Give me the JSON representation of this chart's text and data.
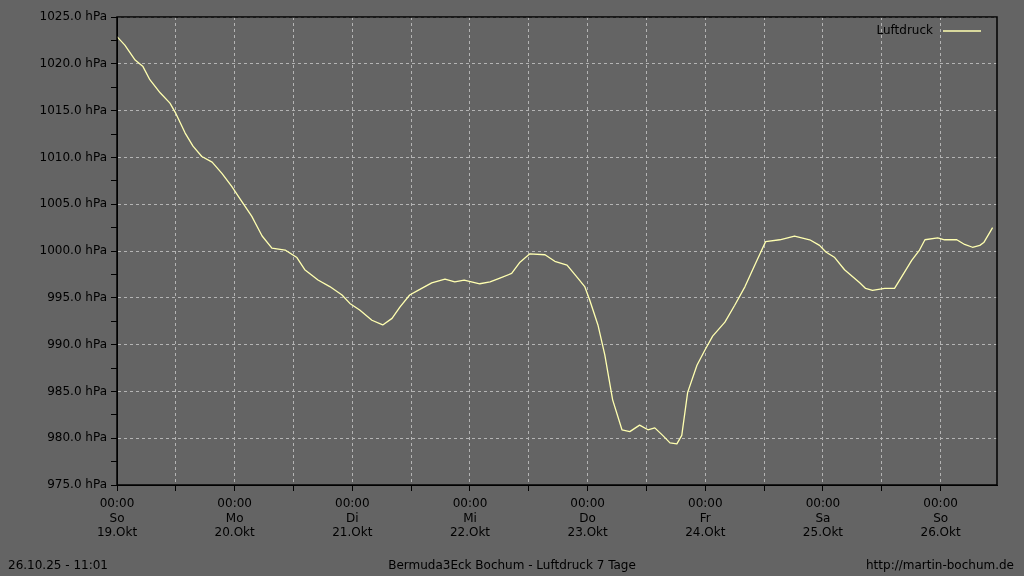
{
  "chart_data": {
    "type": "line",
    "title": "Bermuda3Eck Bochum - Luftdruck 7 Tage",
    "annotations": [
      "26.10.25 - 11:01",
      "http://martin-bochum.de"
    ],
    "x": [
      "--10-19T00:00",
      "--10-19T01:36",
      "--10-19T03:42",
      "--10-19T05:18",
      "--10-19T06:42",
      "--10-19T08:48",
      "--10-19T10:48",
      "--10-19T12:00",
      "--10-19T13:54",
      "--10-19T15:30",
      "--10-19T17:18",
      "--10-19T19:24",
      "--10-19T21:24",
      "--10-19T23:24",
      "--10-20T01:18",
      "--10-20T03:30",
      "--10-20T05:36",
      "--10-20T07:36",
      "--10-20T10:18",
      "--10-20T12:42",
      "--10-20T14:18",
      "--10-20T17:00",
      "--10-20T19:24",
      "--10-20T21:54",
      "--10-20T23:30",
      "--10-21T01:30",
      "--10-21T04:00",
      "--10-21T06:12",
      "--10-21T08:06",
      "--10-21T09:42",
      "--10-21T11:42",
      "--10-21T13:24",
      "--10-21T16:12",
      "--10-21T18:54",
      "--10-21T20:54",
      "--10-21T22:48",
      "--10-22T02:00",
      "--10-22T04:06",
      "--10-22T06:06",
      "--10-22T08:30",
      "--10-22T10:12",
      "--10-22T12:12",
      "--10-22T15:18",
      "--10-22T17:18",
      "--10-22T19:48",
      "--10-22T22:00",
      "--10-22T23:24",
      "--10-23T00:24",
      "--10-23T02:06",
      "--10-23T03:30",
      "--10-23T05:06",
      "--10-23T07:00",
      "--10-23T08:36",
      "--10-23T10:36",
      "--10-23T12:18",
      "--10-23T13:42",
      "--10-23T15:18",
      "--10-23T16:48",
      "--10-23T18:12",
      "--10-23T19:12",
      "--10-23T20:24",
      "--10-23T22:18",
      "--10-23T23:54",
      "--10-24T01:30",
      "--10-24T04:00",
      "--10-24T06:00",
      "--10-24T08:06",
      "--10-24T10:06",
      "--10-24T12:18",
      "--10-24T15:12",
      "--10-24T18:12",
      "--10-24T21:18",
      "--10-24T23:18",
      "--10-25T00:36",
      "--10-25T02:24",
      "--10-25T04:24",
      "--10-25T07:30",
      "--10-25T08:42",
      "--10-25T10:06",
      "--10-25T12:36",
      "--10-25T14:36",
      "--10-25T16:42",
      "--10-25T18:06",
      "--10-25T19:42",
      "--10-25T20:48",
      "--10-25T23:24",
      "--10-26T00:48",
      "--10-26T03:18",
      "--10-26T04:54",
      "--10-26T06:30",
      "--10-26T08:00",
      "--10-26T08:48",
      "--10-26T10:36"
    ],
    "series": [
      {
        "name": "Luftdruck",
        "color": "#ffffb0",
        "values": [
          1022.9,
          1022.0,
          1020.4,
          1019.7,
          1018.3,
          1016.9,
          1015.8,
          1014.7,
          1012.6,
          1011.2,
          1010.1,
          1009.5,
          1008.3,
          1006.9,
          1005.4,
          1003.7,
          1001.6,
          1000.3,
          1000.1,
          999.3,
          998.0,
          996.9,
          996.2,
          995.3,
          994.4,
          993.7,
          992.6,
          992.1,
          992.8,
          994.0,
          995.3,
          995.8,
          996.6,
          997.0,
          996.7,
          996.9,
          996.5,
          996.7,
          997.1,
          997.6,
          998.8,
          999.7,
          999.6,
          998.9,
          998.5,
          997.1,
          996.2,
          994.8,
          992.1,
          988.9,
          984.1,
          980.9,
          980.7,
          981.4,
          980.9,
          981.1,
          980.3,
          979.5,
          979.4,
          980.3,
          984.9,
          987.8,
          989.4,
          990.9,
          992.4,
          994.2,
          996.2,
          998.5,
          1001.0,
          1001.2,
          1001.6,
          1001.2,
          1000.6,
          999.9,
          999.3,
          998.0,
          996.6,
          996.0,
          995.8,
          996.0,
          996.0,
          997.8,
          999.0,
          1000.1,
          1001.2,
          1001.4,
          1001.2,
          1001.2,
          1000.7,
          1000.4,
          1000.6,
          1000.9,
          1002.5
        ]
      }
    ],
    "xlim": [
      "--10-19T00:00",
      "--10-26T11:30"
    ],
    "xticks": [
      {
        "value": "--10-19T00:00",
        "label": "00:00\nSo\n19.Okt"
      },
      {
        "value": "--10-19T12:00",
        "label": null
      },
      {
        "value": "--10-20T00:00",
        "label": "00:00\nMo\n20.Okt"
      },
      {
        "value": "--10-20T12:00",
        "label": null
      },
      {
        "value": "--10-21T00:00",
        "label": "00:00\nDi\n21.Okt"
      },
      {
        "value": "--10-21T12:00",
        "label": null
      },
      {
        "value": "--10-22T00:00",
        "label": "00:00\nMi\n22.Okt"
      },
      {
        "value": "--10-22T12:00",
        "label": null
      },
      {
        "value": "--10-23T00:00",
        "label": "00:00\nDo\n23.Okt"
      },
      {
        "value": "--10-23T12:00",
        "label": null
      },
      {
        "value": "--10-24T00:00",
        "label": "00:00\nFr\n24.Okt"
      },
      {
        "value": "--10-24T12:00",
        "label": null
      },
      {
        "value": "--10-25T00:00",
        "label": "00:00\nSa\n25.Okt"
      },
      {
        "value": "--10-25T12:00",
        "label": null
      },
      {
        "value": "--10-26T00:00",
        "label": "00:00\nSo\n26.Okt"
      }
    ],
    "ylim": [
      975,
      1025
    ],
    "yticks": [
      {
        "value": 975,
        "label": "975.0 hPa"
      },
      {
        "value": 977.5,
        "label": null
      },
      {
        "value": 980,
        "label": "980.0 hPa"
      },
      {
        "value": 982.5,
        "label": null
      },
      {
        "value": 985,
        "label": "985.0 hPa"
      },
      {
        "value": 987.5,
        "label": null
      },
      {
        "value": 990,
        "label": "990.0 hPa"
      },
      {
        "value": 992.5,
        "label": null
      },
      {
        "value": 995,
        "label": "995.0 hPa"
      },
      {
        "value": 997.5,
        "label": null
      },
      {
        "value": 1000,
        "label": "1000.0 hPa"
      },
      {
        "value": 1002.5,
        "label": null
      },
      {
        "value": 1005,
        "label": "1005.0 hPa"
      },
      {
        "value": 1007.5,
        "label": null
      },
      {
        "value": 1010,
        "label": "1010.0 hPa"
      },
      {
        "value": 1012.5,
        "label": null
      },
      {
        "value": 1015,
        "label": "1015.0 hPa"
      },
      {
        "value": 1017.5,
        "label": null
      },
      {
        "value": 1020,
        "label": "1020.0 hPa"
      },
      {
        "value": 1022.5,
        "label": null
      },
      {
        "value": 1025,
        "label": "1025.0 hPa"
      }
    ],
    "grid": true,
    "legend": "top right",
    "marker": "none",
    "line_style": "solid"
  }
}
